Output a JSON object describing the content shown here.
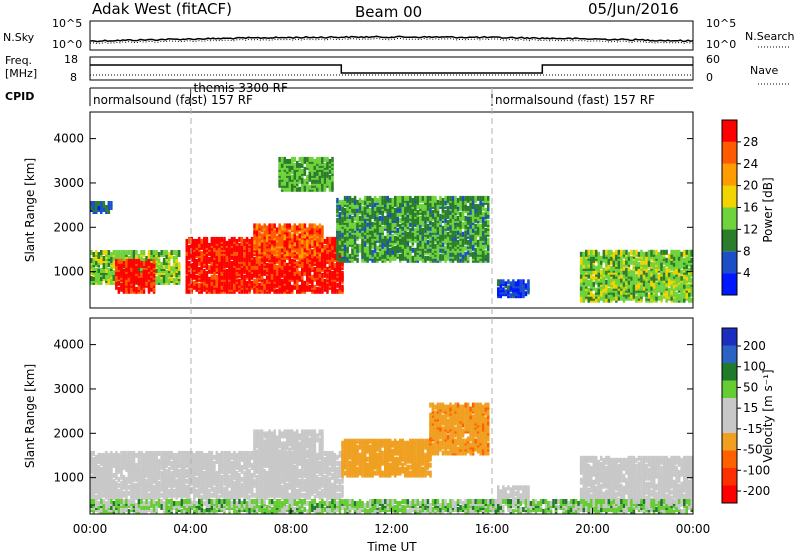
{
  "header": {
    "station": "Adak West (fitACF)",
    "beam": "Beam 00",
    "date": "05/Jun/2016"
  },
  "noise_panel": {
    "left_label": "N.Sky",
    "right_label": "N.Search",
    "ticks_left": [
      "10^5",
      "10^0"
    ],
    "ticks_right": [
      "10^5",
      "10^0"
    ]
  },
  "freq_panel": {
    "left_label_1": "Freq.",
    "left_label_2": "[MHz]",
    "right_label": "Nave",
    "ticks_left": [
      "18",
      "8"
    ],
    "ticks_right": [
      "60",
      "0"
    ]
  },
  "cpid_panel": {
    "label": "CPID",
    "segments": [
      {
        "start_h": 0,
        "end_h": 16,
        "text": "normalsound (fast) 157 RF"
      },
      {
        "start_h": 4,
        "end_h": 4.5,
        "text": "themis 3300 RF"
      },
      {
        "start_h": 16,
        "end_h": 24,
        "text": "normalsound (fast) 157 RF"
      }
    ]
  },
  "colors": {
    "power_scale": [
      "#0018ff",
      "#1a4fc8",
      "#2b7d2b",
      "#6fd33b",
      "#f2d400",
      "#ff9d00",
      "#ff5a00",
      "#ff0000"
    ],
    "velocity_scale": [
      "#1a2fbf",
      "#2a63c4",
      "#1f7a2a",
      "#66cc33",
      "#c8c8c8",
      "#c8c8c8",
      "#f0a020",
      "#ff6000",
      "#ff3000",
      "#ff0000"
    ],
    "ground_scatter": "#c8c8c8"
  },
  "chart_data": [
    {
      "type": "heatmap",
      "name_panel": "power",
      "ylabel": "Slant Range [km]",
      "ylim": [
        180,
        4600
      ],
      "xlim": [
        0,
        24
      ],
      "yticks": [
        "1000",
        "2000",
        "3000",
        "4000"
      ],
      "colorbar": {
        "label": "Power [dB]",
        "range": [
          0,
          32
        ],
        "ticks": [
          "4",
          "8",
          "12",
          "16",
          "20",
          "24",
          "28"
        ]
      },
      "regions": [
        {
          "t0": 0.0,
          "t1": 3.6,
          "r0": 700,
          "r1": 1400,
          "value": 14
        },
        {
          "t0": 1.0,
          "t1": 2.6,
          "r0": 500,
          "r1": 1200,
          "value": 30
        },
        {
          "t0": 3.8,
          "t1": 10.0,
          "r0": 500,
          "r1": 1700,
          "value": 30
        },
        {
          "t0": 6.5,
          "t1": 9.2,
          "r0": 1300,
          "r1": 2000,
          "value": 26
        },
        {
          "t0": 9.8,
          "t1": 15.8,
          "r0": 1200,
          "r1": 2600,
          "value": 11
        },
        {
          "t0": 7.5,
          "t1": 9.6,
          "r0": 2800,
          "r1": 3500,
          "value": 12
        },
        {
          "t0": 0.0,
          "t1": 0.8,
          "r0": 2300,
          "r1": 2500,
          "value": 6
        },
        {
          "t0": 16.2,
          "t1": 17.5,
          "r0": 400,
          "r1": 750,
          "value": 5
        },
        {
          "t0": 19.5,
          "t1": 24.0,
          "r0": 300,
          "r1": 1400,
          "value": 14
        }
      ]
    },
    {
      "type": "heatmap",
      "name_panel": "velocity",
      "ylabel": "Slant Range [km]",
      "xlabel": "Time UT",
      "ylim": [
        180,
        4600
      ],
      "xlim": [
        0,
        24
      ],
      "yticks": [
        "1000",
        "2000",
        "3000",
        "4000"
      ],
      "xticks": [
        "00:00",
        "04:00",
        "08:00",
        "12:00",
        "16:00",
        "20:00",
        "00:00"
      ],
      "colorbar": {
        "label": "Velocity [m s⁻¹]",
        "ticks": [
          "200",
          "100",
          "50",
          "15",
          "-15",
          "-50",
          "-100",
          "-200"
        ]
      },
      "regions": [
        {
          "t0": 0.0,
          "t1": 10.0,
          "r0": 500,
          "r1": 1500,
          "value": 0
        },
        {
          "t0": 6.5,
          "t1": 9.2,
          "r0": 1300,
          "r1": 2000,
          "value": 0
        },
        {
          "t0": 10.0,
          "t1": 13.5,
          "r0": 1000,
          "r1": 1800,
          "value": -30
        },
        {
          "t0": 13.5,
          "t1": 15.8,
          "r0": 1500,
          "r1": 2600,
          "value": -40
        },
        {
          "t0": 16.2,
          "t1": 17.5,
          "r0": 400,
          "r1": 750,
          "value": 0
        },
        {
          "t0": 19.5,
          "t1": 24.0,
          "r0": 300,
          "r1": 1400,
          "value": 0
        },
        {
          "t0": 0.0,
          "t1": 24.0,
          "r0": 180,
          "r1": 450,
          "value": 20
        }
      ]
    }
  ]
}
